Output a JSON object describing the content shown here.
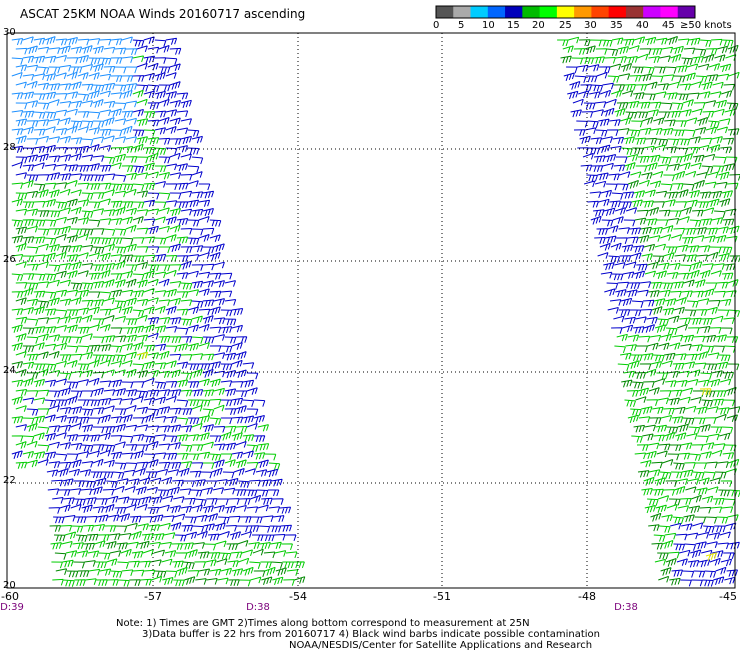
{
  "title": "ASCAT 25KM NOAA Winds 20160717 ascending",
  "legend": {
    "colors": [
      "#555555",
      "#aaaaaa",
      "#00ccff",
      "#0066ff",
      "#0000bb",
      "#00bb00",
      "#00ff00",
      "#ffff00",
      "#ff9900",
      "#ff4400",
      "#ff0000",
      "#993333",
      "#cc00ff",
      "#ff00ff",
      "#6600aa"
    ],
    "labels": [
      "0",
      "5",
      "10",
      "15",
      "20",
      "25",
      "30",
      "35",
      "40",
      "45"
    ],
    "unit_label": "≥50 knots"
  },
  "lat_labels": [
    "30",
    "28",
    "26",
    "24",
    "22",
    "20"
  ],
  "lon_labels": [
    "-60",
    "-57",
    "-54",
    "-51",
    "-48",
    "-45"
  ],
  "time_labels": [
    "D:39",
    "D:38",
    "D:38"
  ],
  "notes": {
    "line1": "Note: 1) Times are GMT 2)Times along bottom correspond to measurement at 25N",
    "line2": "3)Data buffer is 22 hrs from 20160717 4) Black wind barbs indicate possible contamination",
    "line3": "NOAA/NESDIS/Center for Satellite Applications and Research"
  },
  "barb_colors": {
    "light_blue": "#1e90ff",
    "blue": "#0000cc",
    "green": "#00cc00",
    "dark_green": "#008800",
    "yellow": "#e6e600"
  }
}
